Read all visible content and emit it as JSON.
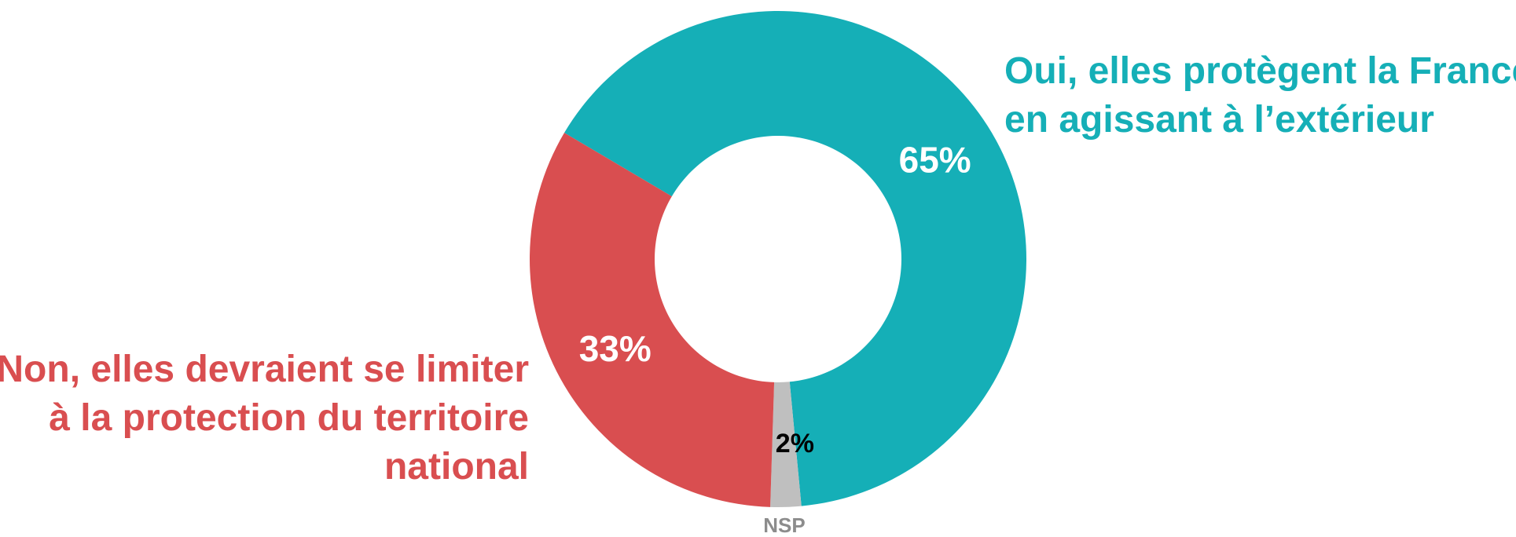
{
  "chart_data": {
    "type": "pie",
    "donut": true,
    "legend": "none",
    "slices": [
      {
        "label": [
          "Oui, elles protègent la France",
          "en agissant à l’extérieur"
        ],
        "value": 65,
        "value_label": "65%",
        "color": "#15AFB7",
        "text_color": "#FFFFFF"
      },
      {
        "label": [
          "NSP"
        ],
        "value": 2,
        "value_label": "2%",
        "color": "#BFBFBF",
        "text_color": "#000000"
      },
      {
        "label": [
          "Non, elles devraient se limiter",
          "à la protection du territoire",
          "national"
        ],
        "value": 33,
        "value_label": "33%",
        "color": "#D94E50",
        "text_color": "#FFFFFF"
      }
    ]
  },
  "labels": {
    "oui": [
      "Oui, elles protègent la France",
      "en agissant à l’extérieur"
    ],
    "non": [
      "Non, elles devraient se limiter",
      "à la protection du territoire",
      "national"
    ],
    "nsp": "NSP"
  },
  "colors": {
    "oui": "#15AFB7",
    "non": "#D94E50",
    "nsp": "#BFBFBF",
    "nsp_label": "#8C8C8C"
  }
}
